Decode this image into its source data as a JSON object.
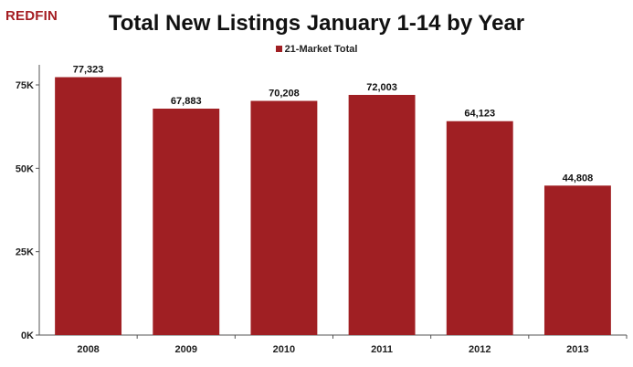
{
  "brand": {
    "logo_text": "REDFIN"
  },
  "chart_data": {
    "type": "bar",
    "title": "Total New Listings January 1-14 by Year",
    "xlabel": "",
    "ylabel": "",
    "categories": [
      "2008",
      "2009",
      "2010",
      "2011",
      "2012",
      "2013"
    ],
    "series": [
      {
        "name": "21-Market Total",
        "values": [
          77323,
          67883,
          70208,
          72003,
          64123,
          44808
        ]
      }
    ],
    "data_labels": [
      "77,323",
      "67,883",
      "70,208",
      "72,003",
      "64,123",
      "44,808"
    ],
    "ylim": [
      0,
      75000
    ],
    "yticks": [
      0,
      25000,
      50000,
      75000
    ],
    "ytick_labels": [
      "0K",
      "25K",
      "50K",
      "75K"
    ],
    "grid": false,
    "legend_position": "top-center",
    "bar_color": "#a01f23"
  }
}
